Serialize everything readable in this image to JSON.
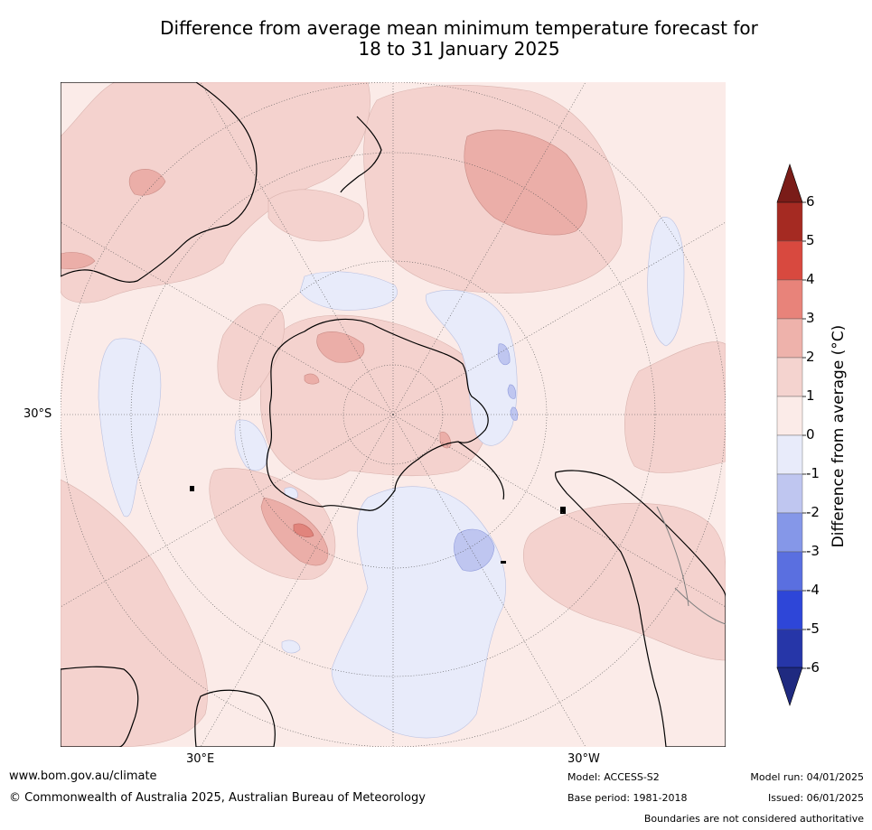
{
  "title": {
    "line1": "Difference from average mean minimum temperature forecast for",
    "line2": "18 to 31 January 2025"
  },
  "map": {
    "projection": "south-polar-stereographic",
    "graticule_labels": {
      "lat": "30°S",
      "lon_left": "30°E",
      "lon_right": "30°W"
    },
    "colors": {
      "ocean_base": "#fbebe8",
      "warm_1_2": "#f4d2ce",
      "warm_2_3": "#ebaea8",
      "warm_3_4": "#e1847c",
      "cool_0_1": "#e8ebfa",
      "cool_1_2": "#bfc6f0",
      "coast": "#000000",
      "border": "#808080"
    }
  },
  "colorbar": {
    "label": "Difference from average (°C)",
    "ticks": [
      "6",
      "5",
      "4",
      "3",
      "2",
      "1",
      "0",
      "-1",
      "-2",
      "-3",
      "-4",
      "-5",
      "-6"
    ],
    "segments": [
      "#a52a22",
      "#d8493f",
      "#e8837a",
      "#eeb2ab",
      "#f4d3cf",
      "#fbebe8",
      "#e8ebfa",
      "#bfc6f0",
      "#8597e8",
      "#5a6fe0",
      "#2e46d8",
      "#2636a8"
    ],
    "over_color": "#7a1c18",
    "under_color": "#1f2a80"
  },
  "footer": {
    "website": "www.bom.gov.au/climate",
    "copyright": "© Commonwealth of Australia 2025, Australian Bureau of Meteorology",
    "model": "Model: ACCESS-S2",
    "base_period": "Base period: 1981-2018",
    "model_run": "Model run: 04/01/2025",
    "issued": "Issued: 06/01/2025",
    "disclaimer": "Boundaries are not considered authoritative"
  }
}
